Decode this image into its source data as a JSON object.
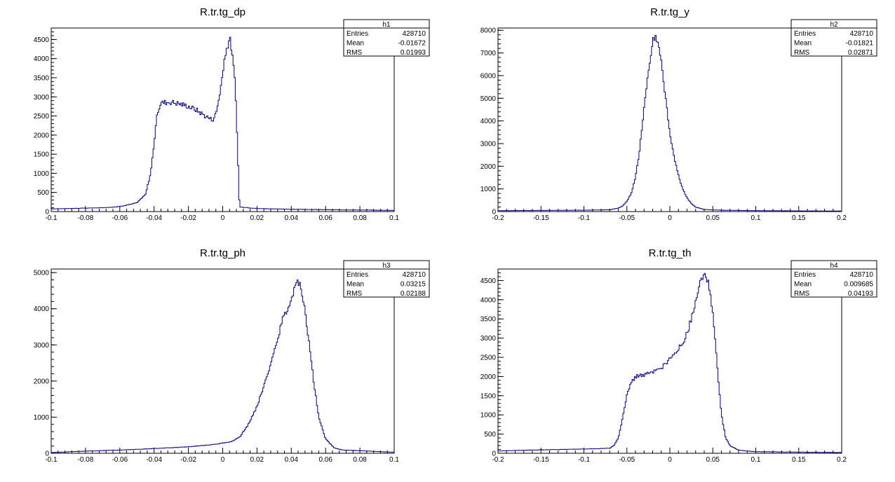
{
  "chart_data": [
    {
      "type": "histogram",
      "id": "h1",
      "title": "R.tr.tg_dp",
      "stats": [
        {
          "label": "Entries",
          "value": "428710"
        },
        {
          "label": "Mean",
          "value": "-0.01672"
        },
        {
          "label": "RMS",
          "value": "0.01993"
        }
      ],
      "xlim": [
        -0.1,
        0.1
      ],
      "ylim": [
        0,
        4800
      ],
      "x_ticks": [
        -0.1,
        -0.08,
        -0.06,
        -0.04,
        -0.02,
        0,
        0.02,
        0.04,
        0.06,
        0.08,
        0.1
      ],
      "x_tick_labels": [
        "-0.1",
        "-0.08",
        "-0.06",
        "-0.04",
        "-0.02",
        "0",
        "0.02",
        "0.04",
        "0.06",
        "0.08",
        "0.1"
      ],
      "y_ticks": [
        0,
        500,
        1000,
        1500,
        2000,
        2500,
        3000,
        3500,
        4000,
        4500
      ],
      "y_tick_labels": [
        "0",
        "500",
        "1000",
        "1500",
        "2000",
        "2500",
        "3000",
        "3500",
        "4000",
        "4500"
      ],
      "points": [
        [
          -0.1,
          70
        ],
        [
          -0.09,
          80
        ],
        [
          -0.08,
          90
        ],
        [
          -0.07,
          100
        ],
        [
          -0.06,
          130
        ],
        [
          -0.05,
          230
        ],
        [
          -0.045,
          450
        ],
        [
          -0.042,
          1000
        ],
        [
          -0.04,
          1800
        ],
        [
          -0.038,
          2600
        ],
        [
          -0.036,
          2850
        ],
        [
          -0.03,
          2870
        ],
        [
          -0.025,
          2820
        ],
        [
          -0.02,
          2760
        ],
        [
          -0.015,
          2650
        ],
        [
          -0.01,
          2500
        ],
        [
          -0.006,
          2400
        ],
        [
          -0.004,
          2550
        ],
        [
          -0.002,
          3000
        ],
        [
          0.0,
          3600
        ],
        [
          0.002,
          4200
        ],
        [
          0.004,
          4550
        ],
        [
          0.005,
          4300
        ],
        [
          0.007,
          3500
        ],
        [
          0.008,
          2500
        ],
        [
          0.009,
          1200
        ],
        [
          0.0095,
          400
        ],
        [
          0.01,
          120
        ],
        [
          0.02,
          80
        ],
        [
          0.04,
          60
        ],
        [
          0.06,
          50
        ],
        [
          0.08,
          40
        ],
        [
          0.1,
          30
        ]
      ]
    },
    {
      "type": "histogram",
      "id": "h2",
      "title": "R.tr.tg_y",
      "stats": [
        {
          "label": "Entries",
          "value": "428710"
        },
        {
          "label": "Mean",
          "value": "-0.01821"
        },
        {
          "label": "RMS",
          "value": "0.02871"
        }
      ],
      "xlim": [
        -0.2,
        0.2
      ],
      "ylim": [
        0,
        8100
      ],
      "x_ticks": [
        -0.2,
        -0.15,
        -0.1,
        -0.05,
        0,
        0.05,
        0.1,
        0.15,
        0.2
      ],
      "x_tick_labels": [
        "-0.2",
        "-0.15",
        "-0.1",
        "-0.05",
        "0",
        "0.05",
        "0.1",
        "0.15",
        "0.2"
      ],
      "y_ticks": [
        0,
        1000,
        2000,
        3000,
        4000,
        5000,
        6000,
        7000,
        8000
      ],
      "y_tick_labels": [
        "0",
        "1000",
        "2000",
        "3000",
        "4000",
        "5000",
        "6000",
        "7000",
        "8000"
      ],
      "points": [
        [
          -0.2,
          40
        ],
        [
          -0.15,
          50
        ],
        [
          -0.1,
          60
        ],
        [
          -0.07,
          80
        ],
        [
          -0.06,
          150
        ],
        [
          -0.055,
          250
        ],
        [
          -0.05,
          450
        ],
        [
          -0.045,
          800
        ],
        [
          -0.04,
          1500
        ],
        [
          -0.036,
          2500
        ],
        [
          -0.032,
          3800
        ],
        [
          -0.028,
          5200
        ],
        [
          -0.024,
          6500
        ],
        [
          -0.02,
          7400
        ],
        [
          -0.018,
          7700
        ],
        [
          -0.015,
          7600
        ],
        [
          -0.012,
          7200
        ],
        [
          -0.008,
          6000
        ],
        [
          -0.004,
          4700
        ],
        [
          0.0,
          3500
        ],
        [
          0.005,
          2400
        ],
        [
          0.01,
          1600
        ],
        [
          0.015,
          1000
        ],
        [
          0.02,
          600
        ],
        [
          0.025,
          350
        ],
        [
          0.03,
          200
        ],
        [
          0.04,
          90
        ],
        [
          0.06,
          60
        ],
        [
          0.1,
          40
        ],
        [
          0.15,
          30
        ],
        [
          0.2,
          25
        ]
      ]
    },
    {
      "type": "histogram",
      "id": "h3",
      "title": "R.tr.tg_ph",
      "stats": [
        {
          "label": "Entries",
          "value": "428710"
        },
        {
          "label": "Mean",
          "value": "0.03215"
        },
        {
          "label": "RMS",
          "value": "0.02188"
        }
      ],
      "xlim": [
        -0.1,
        0.1
      ],
      "ylim": [
        0,
        5100
      ],
      "x_ticks": [
        -0.1,
        -0.08,
        -0.06,
        -0.04,
        -0.02,
        0,
        0.02,
        0.04,
        0.06,
        0.08,
        0.1
      ],
      "x_tick_labels": [
        "-0.1",
        "-0.08",
        "-0.06",
        "-0.04",
        "-0.02",
        "0",
        "0.02",
        "0.04",
        "0.06",
        "0.08",
        "0.1"
      ],
      "y_ticks": [
        0,
        1000,
        2000,
        3000,
        4000,
        5000
      ],
      "y_tick_labels": [
        "0",
        "1000",
        "2000",
        "3000",
        "4000",
        "5000"
      ],
      "points": [
        [
          -0.1,
          20
        ],
        [
          -0.09,
          40
        ],
        [
          -0.08,
          60
        ],
        [
          -0.06,
          90
        ],
        [
          -0.04,
          130
        ],
        [
          -0.02,
          180
        ],
        [
          -0.01,
          220
        ],
        [
          0.0,
          280
        ],
        [
          0.005,
          320
        ],
        [
          0.01,
          450
        ],
        [
          0.015,
          800
        ],
        [
          0.02,
          1300
        ],
        [
          0.025,
          2000
        ],
        [
          0.03,
          2800
        ],
        [
          0.035,
          3700
        ],
        [
          0.04,
          4300
        ],
        [
          0.042,
          4600
        ],
        [
          0.044,
          4800
        ],
        [
          0.046,
          4500
        ],
        [
          0.048,
          4000
        ],
        [
          0.05,
          3200
        ],
        [
          0.053,
          2000
        ],
        [
          0.056,
          1000
        ],
        [
          0.06,
          400
        ],
        [
          0.065,
          150
        ],
        [
          0.07,
          90
        ],
        [
          0.08,
          70
        ],
        [
          0.09,
          50
        ],
        [
          0.1,
          30
        ]
      ]
    },
    {
      "type": "histogram",
      "id": "h4",
      "title": "R.tr.tg_th",
      "stats": [
        {
          "label": "Entries",
          "value": "428710"
        },
        {
          "label": "Mean",
          "value": "0.009685"
        },
        {
          "label": "RMS",
          "value": "0.04193"
        }
      ],
      "xlim": [
        -0.2,
        0.2
      ],
      "ylim": [
        0,
        4800
      ],
      "x_ticks": [
        -0.2,
        -0.15,
        -0.1,
        -0.05,
        0,
        0.05,
        0.1,
        0.15,
        0.2
      ],
      "x_tick_labels": [
        "-0.2",
        "-0.15",
        "-0.1",
        "-0.05",
        "0",
        "0.05",
        "0.1",
        "0.15",
        "0.2"
      ],
      "y_ticks": [
        0,
        500,
        1000,
        1500,
        2000,
        2500,
        3000,
        3500,
        4000,
        4500
      ],
      "y_tick_labels": [
        "0",
        "500",
        "1000",
        "1500",
        "2000",
        "2500",
        "3000",
        "3500",
        "4000",
        "4500"
      ],
      "points": [
        [
          -0.2,
          60
        ],
        [
          -0.15,
          90
        ],
        [
          -0.1,
          110
        ],
        [
          -0.07,
          130
        ],
        [
          -0.065,
          200
        ],
        [
          -0.06,
          400
        ],
        [
          -0.055,
          900
        ],
        [
          -0.05,
          1500
        ],
        [
          -0.045,
          1850
        ],
        [
          -0.04,
          2000
        ],
        [
          -0.03,
          2050
        ],
        [
          -0.02,
          2100
        ],
        [
          -0.01,
          2200
        ],
        [
          0.0,
          2450
        ],
        [
          0.01,
          2700
        ],
        [
          0.02,
          3100
        ],
        [
          0.03,
          3900
        ],
        [
          0.035,
          4400
        ],
        [
          0.04,
          4650
        ],
        [
          0.045,
          4500
        ],
        [
          0.05,
          3600
        ],
        [
          0.055,
          2300
        ],
        [
          0.06,
          1000
        ],
        [
          0.065,
          400
        ],
        [
          0.07,
          200
        ],
        [
          0.08,
          80
        ],
        [
          0.1,
          40
        ],
        [
          0.15,
          30
        ],
        [
          0.2,
          20
        ]
      ]
    }
  ]
}
